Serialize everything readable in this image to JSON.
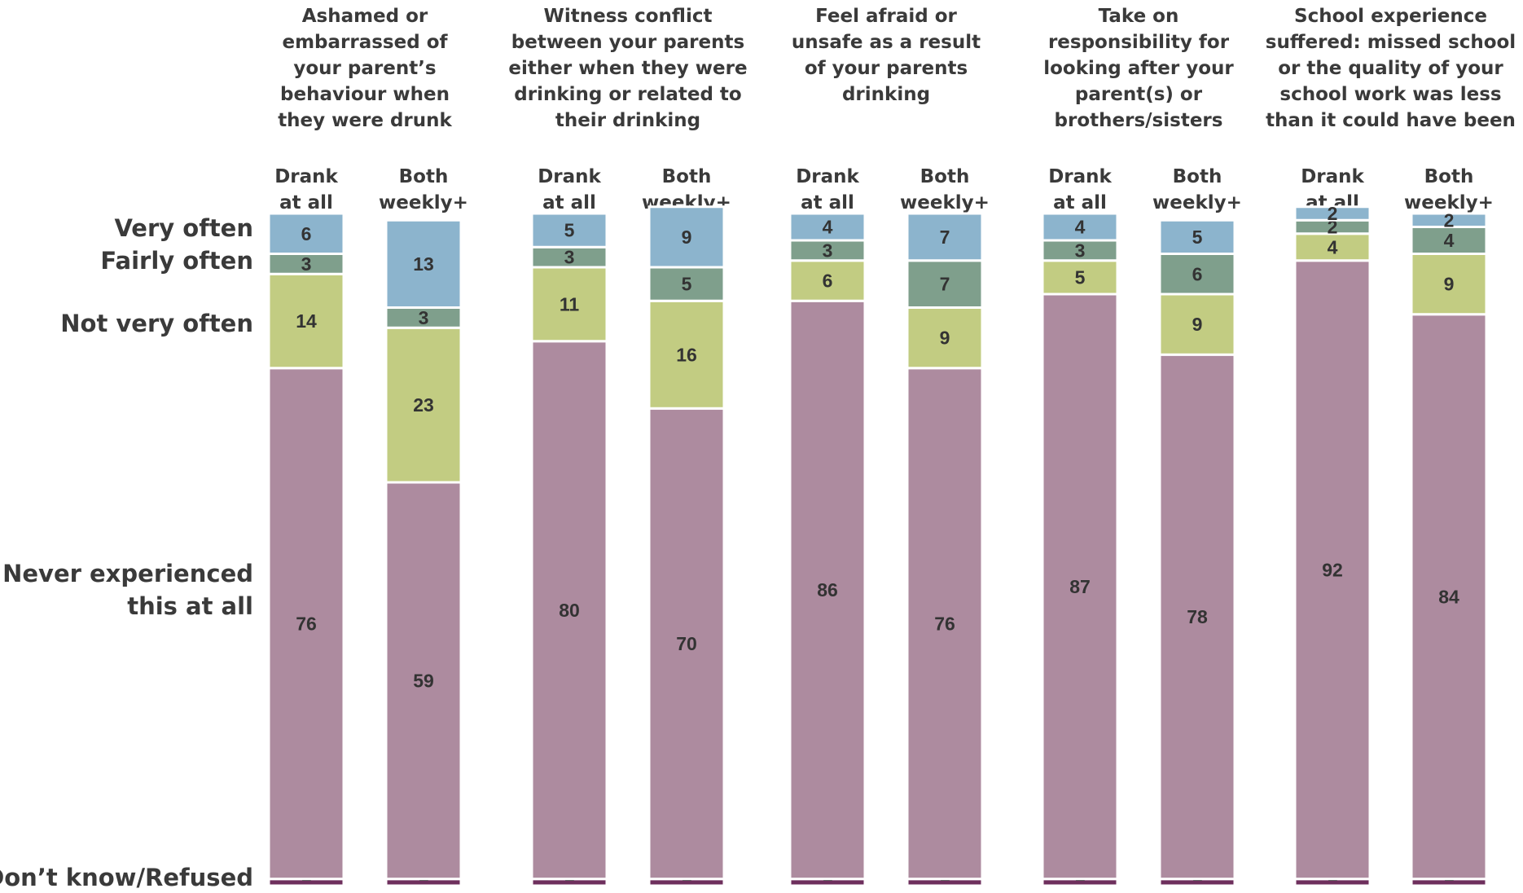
{
  "chart_data": {
    "type": "bar",
    "stacked": true,
    "orientation": "vertical",
    "categories_order_bottom_to_top": [
      "Don’t know/Refused",
      "Never experienced this at all",
      "Not very often",
      "Fairly often",
      "Very often"
    ],
    "category_labels": [
      {
        "key": "very",
        "text": [
          "Very often"
        ]
      },
      {
        "key": "fairly",
        "text": [
          "Fairly often"
        ]
      },
      {
        "key": "notvery",
        "text": [
          "Not very often"
        ]
      },
      {
        "key": "never",
        "text": [
          "Never experienced",
          "this at all"
        ]
      },
      {
        "key": "dk",
        "text": [
          "Don’t know/Refused"
        ]
      }
    ],
    "colors": {
      "very": "#8cb4cd",
      "fairly": "#7f9f8c",
      "notvery": "#c2cc82",
      "never": "#ad8b9f",
      "dk": "#6e2f5d"
    },
    "groups": [
      {
        "title": [
          "Ashamed or",
          "embarrassed of",
          "your parent’s",
          "behaviour when",
          "they were drunk"
        ],
        "bars": [
          {
            "label": [
              "Drank",
              "at all"
            ],
            "values": {
              "dk": 1,
              "never": 76,
              "notvery": 14,
              "fairly": 3,
              "very": 6
            }
          },
          {
            "label": [
              "Both",
              "weekly+"
            ],
            "values": {
              "dk": 1,
              "never": 59,
              "notvery": 23,
              "fairly": 3,
              "very": 13
            }
          }
        ]
      },
      {
        "title": [
          "Witness conflict",
          "between your parents",
          "either when they were",
          "drinking or related to",
          "their drinking"
        ],
        "bars": [
          {
            "label": [
              "Drank",
              "at all"
            ],
            "values": {
              "dk": 1,
              "never": 80,
              "notvery": 11,
              "fairly": 3,
              "very": 5
            }
          },
          {
            "label": [
              "Both",
              "weekly+"
            ],
            "values": {
              "dk": 1,
              "never": 70,
              "notvery": 16,
              "fairly": 5,
              "very": 9
            }
          }
        ]
      },
      {
        "title": [
          "Feel afraid or",
          "unsafe as a result",
          "of your parents",
          "drinking"
        ],
        "bars": [
          {
            "label": [
              "Drank",
              "at all"
            ],
            "values": {
              "dk": 1,
              "never": 86,
              "notvery": 6,
              "fairly": 3,
              "very": 4
            }
          },
          {
            "label": [
              "Both",
              "weekly+"
            ],
            "values": {
              "dk": 1,
              "never": 76,
              "notvery": 9,
              "fairly": 7,
              "very": 7
            }
          }
        ]
      },
      {
        "title": [
          "Take on",
          "responsibility for",
          "looking after your",
          "parent(s) or",
          "brothers/sisters"
        ],
        "bars": [
          {
            "label": [
              "Drank",
              "at all"
            ],
            "values": {
              "dk": 1,
              "never": 87,
              "notvery": 5,
              "fairly": 3,
              "very": 4
            }
          },
          {
            "label": [
              "Both",
              "weekly+"
            ],
            "values": {
              "dk": 1,
              "never": 78,
              "notvery": 9,
              "fairly": 6,
              "very": 5
            }
          }
        ]
      },
      {
        "title": [
          "School experience",
          "suffered: missed school",
          "or the quality of your",
          "school work was less",
          "than it could have been"
        ],
        "bars": [
          {
            "label": [
              "Drank",
              "at all"
            ],
            "values": {
              "dk": 1,
              "never": 92,
              "notvery": 4,
              "fairly": 2,
              "very": 2
            }
          },
          {
            "label": [
              "Both",
              "weekly+"
            ],
            "values": {
              "dk": 1,
              "never": 84,
              "notvery": 9,
              "fairly": 4,
              "very": 2
            }
          }
        ]
      }
    ],
    "ylim": [
      0,
      100
    ],
    "legend": "none",
    "grid": false
  }
}
